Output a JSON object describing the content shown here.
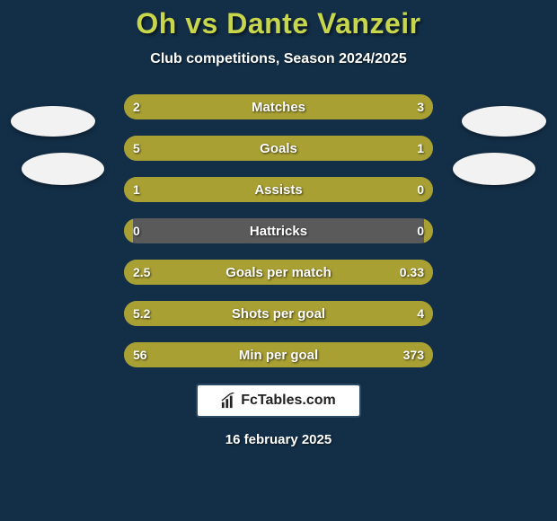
{
  "colors": {
    "background": "#132f48",
    "title": "#c7d64a",
    "subtitle": "#ffffff",
    "bar_bg": "#5a5a5a",
    "bar_accent": "#a9a033",
    "bar_label": "#ffffff",
    "bar_value": "#ffffff",
    "logo_bg": "#ffffff",
    "logo_border": "#2a4a66",
    "logo_text": "#222222",
    "date": "#ffffff",
    "avatar_bg": "#f2f2f2"
  },
  "title": "Oh vs Dante Vanzeir",
  "subtitle": "Club competitions, Season 2024/2025",
  "logo_text": "FcTables.com",
  "date": "16 february 2025",
  "bars": [
    {
      "label": "Matches",
      "left": "2",
      "right": "3",
      "left_pct": 40,
      "right_pct": 60
    },
    {
      "label": "Goals",
      "left": "5",
      "right": "1",
      "left_pct": 78,
      "right_pct": 22
    },
    {
      "label": "Assists",
      "left": "1",
      "right": "0",
      "left_pct": 92,
      "right_pct": 8
    },
    {
      "label": "Hattricks",
      "left": "0",
      "right": "0",
      "left_pct": 3,
      "right_pct": 3
    },
    {
      "label": "Goals per match",
      "left": "2.5",
      "right": "0.33",
      "left_pct": 84,
      "right_pct": 16
    },
    {
      "label": "Shots per goal",
      "left": "5.2",
      "right": "4",
      "left_pct": 55,
      "right_pct": 45
    },
    {
      "label": "Min per goal",
      "left": "56",
      "right": "373",
      "left_pct": 18,
      "right_pct": 82
    }
  ]
}
